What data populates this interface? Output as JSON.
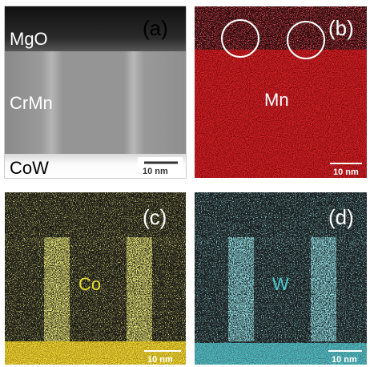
{
  "panels": [
    {
      "tag": "(a)",
      "labels": [
        "MgO",
        "CrMn",
        "CoW"
      ],
      "scale_bar": "10 nm"
    },
    {
      "tag": "(b)",
      "labels": [
        "Mn"
      ],
      "scale_bar": "10 nm"
    },
    {
      "tag": "(c)",
      "labels": [
        "Co"
      ],
      "scale_bar": "10 nm"
    },
    {
      "tag": "(d)",
      "labels": [
        "W"
      ],
      "scale_bar": "10 nm"
    }
  ]
}
